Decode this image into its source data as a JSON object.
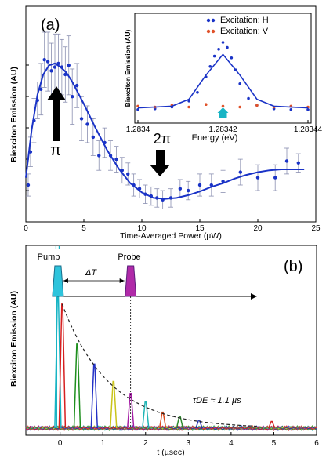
{
  "chart_data": [
    {
      "type": "scatter",
      "panel_label": "(a)",
      "xlabel": "Time-Averaged Power (µW)",
      "ylabel": "Biexciton Emission (AU)",
      "xlim": [
        0,
        25
      ],
      "xticks": [
        "0",
        "5",
        "10",
        "15",
        "20",
        "25"
      ],
      "grid": false,
      "series": [
        {
          "kind": "points_with_error_bars",
          "color": "#1a33c7",
          "x": [
            0.2,
            0.4,
            0.7,
            1.0,
            1.3,
            1.6,
            1.9,
            2.2,
            2.5,
            2.8,
            3.1,
            3.4,
            3.7,
            4.0,
            4.4,
            4.8,
            5.3,
            5.8,
            6.3,
            6.8,
            7.3,
            7.8,
            8.3,
            8.8,
            9.3,
            9.8,
            10.3,
            10.8,
            11.3,
            11.8,
            12.5,
            13.3,
            14.0,
            15.0,
            16.0,
            17.0,
            18.5,
            20.0,
            21.5,
            22.5,
            23.5
          ],
          "y": [
            0.2,
            0.38,
            0.55,
            0.66,
            0.72,
            0.88,
            0.87,
            0.82,
            0.84,
            0.86,
            0.84,
            0.8,
            0.85,
            0.68,
            0.74,
            0.56,
            0.53,
            0.46,
            0.36,
            0.43,
            0.36,
            0.34,
            0.28,
            0.26,
            0.2,
            0.18,
            0.15,
            0.14,
            0.13,
            0.12,
            0.13,
            0.18,
            0.17,
            0.2,
            0.2,
            0.22,
            0.27,
            0.24,
            0.24,
            0.33,
            0.32
          ],
          "err": [
            0.06,
            0.08,
            0.12,
            0.1,
            0.14,
            0.15,
            0.16,
            0.15,
            0.18,
            0.16,
            0.15,
            0.15,
            0.16,
            0.15,
            0.12,
            0.12,
            0.1,
            0.1,
            0.08,
            0.08,
            0.08,
            0.07,
            0.07,
            0.06,
            0.06,
            0.05,
            0.05,
            0.05,
            0.05,
            0.05,
            0.05,
            0.05,
            0.05,
            0.06,
            0.06,
            0.06,
            0.07,
            0.07,
            0.07,
            0.07,
            0.05
          ]
        },
        {
          "kind": "fit_curve",
          "color": "#1a33c7",
          "x": [
            0,
            0.5,
            1.0,
            1.5,
            2.0,
            2.5,
            3.0,
            3.5,
            4.0,
            5.0,
            6.0,
            7.0,
            8.0,
            9.0,
            10.0,
            11.0,
            12.0,
            13.0,
            14.0,
            15.0,
            16.0,
            17.0,
            18.0,
            19.0,
            20.0,
            21.0,
            22.0,
            23.0,
            24.0
          ],
          "y": [
            0.24,
            0.5,
            0.69,
            0.8,
            0.85,
            0.86,
            0.84,
            0.81,
            0.76,
            0.64,
            0.51,
            0.39,
            0.29,
            0.21,
            0.16,
            0.13,
            0.125,
            0.13,
            0.145,
            0.165,
            0.19,
            0.21,
            0.235,
            0.255,
            0.27,
            0.28,
            0.285,
            0.285,
            0.285
          ]
        }
      ],
      "annotations": [
        {
          "text": "π",
          "x": 2.8,
          "y": 0.62
        },
        {
          "text": "2π",
          "x": 11.0,
          "y": 0.22
        }
      ],
      "inset": {
        "type": "scatter",
        "xlabel": "Energy (eV)",
        "ylabel": "Biexciton Emission (AU)",
        "xlim": [
          1.2834,
          1.28344
        ],
        "xticks": [
          "1.2834",
          "1.28342",
          "1.28344"
        ],
        "marker_x": 1.28342,
        "series": [
          {
            "name": "Excitation: H",
            "color": "#1a33c7",
            "x": [
              1.2834,
              1.283404,
              1.283408,
              1.283412,
              1.283414,
              1.283416,
              1.283417,
              1.283418,
              1.283419,
              1.28342,
              1.283421,
              1.283422,
              1.283423,
              1.283424,
              1.283426,
              1.283428,
              1.283432,
              1.283436,
              1.28344
            ],
            "y": [
              0.12,
              0.13,
              0.15,
              0.22,
              0.32,
              0.5,
              0.62,
              0.74,
              0.82,
              0.9,
              0.84,
              0.72,
              0.58,
              0.42,
              0.25,
              0.17,
              0.13,
              0.12,
              0.12
            ]
          },
          {
            "name": "Excitation: V",
            "color": "#e0522a",
            "x": [
              1.2834,
              1.283404,
              1.283408,
              1.283412,
              1.283416,
              1.28342,
              1.283424,
              1.283428,
              1.283432,
              1.283436,
              1.28344
            ],
            "y": [
              0.16,
              0.15,
              0.17,
              0.15,
              0.18,
              0.16,
              0.15,
              0.17,
              0.15,
              0.16,
              0.15
            ]
          },
          {
            "kind": "fit_curve",
            "color": "#1a33c7",
            "x": [
              1.2834,
              1.283408,
              1.283412,
              1.283416,
              1.28342,
              1.283424,
              1.283428,
              1.283432,
              1.28344
            ],
            "y": [
              0.14,
              0.16,
              0.24,
              0.52,
              0.76,
              0.52,
              0.24,
              0.16,
              0.14
            ]
          }
        ]
      }
    },
    {
      "type": "line",
      "panel_label": "(b)",
      "xlabel": "t (µsec)",
      "ylabel": "Biexciton Emission (AU)",
      "xlim": [
        -0.8,
        6
      ],
      "xticks": [
        "0",
        "1",
        "2",
        "3",
        "4",
        "5",
        "6"
      ],
      "labels": {
        "pump": "Pump",
        "probe": "Probe",
        "delay": "ΔT"
      },
      "pump_t": -0.05,
      "probe_t": 1.65,
      "decay_tau_us": 1.1,
      "decay_label": "τDE ≈ 1.1 µs",
      "series": [
        {
          "name": "",
          "color": "#18b4c4",
          "delay": -0.05,
          "peak": 1.0
        },
        {
          "name": "",
          "color": "#d62020",
          "delay": 0.05,
          "peak": 0.93
        },
        {
          "name": "",
          "color": "#1e8f1e",
          "delay": 0.4,
          "peak": 0.63
        },
        {
          "name": "",
          "color": "#2432c6",
          "delay": 0.8,
          "peak": 0.48
        },
        {
          "name": "",
          "color": "#c9c41a",
          "delay": 1.25,
          "peak": 0.35
        },
        {
          "name": "",
          "color": "#a51fa5",
          "delay": 1.65,
          "peak": 0.26
        },
        {
          "name": "",
          "color": "#1fb5b5",
          "delay": 2.0,
          "peak": 0.2
        },
        {
          "name": "",
          "color": "#d94b1e",
          "delay": 2.4,
          "peak": 0.12
        },
        {
          "name": "",
          "color": "#2e8b2e",
          "delay": 2.8,
          "peak": 0.09
        },
        {
          "name": "",
          "color": "#2233aa",
          "delay": 3.25,
          "peak": 0.06
        },
        {
          "name": "",
          "color": "#d42222",
          "delay": 4.95,
          "peak": 0.05
        }
      ]
    }
  ]
}
